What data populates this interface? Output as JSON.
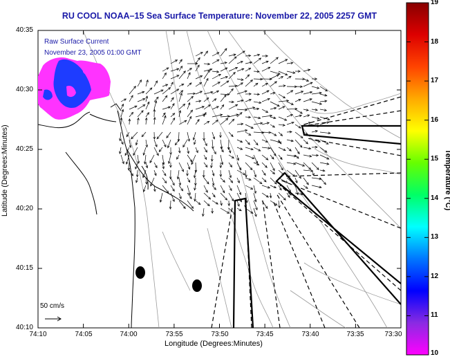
{
  "title": "RU COOL  NOAA–15  Sea Surface Temperature:  November 22, 2005 2257 GMT",
  "legend": {
    "line1": "Raw Surface Current",
    "line2": "November 23, 2005 01:00 GMT"
  },
  "scale_label": "50 cm/s",
  "x_axis": {
    "label": "Longitude (Degrees:Minutes)",
    "ticks": [
      "74:10",
      "74:05",
      "74:00",
      "73:55",
      "73:50",
      "73:45",
      "73:40",
      "73:35",
      "73:30"
    ]
  },
  "y_axis": {
    "label": "Latitude (Degrees:Minutes)",
    "ticks": [
      "40:35",
      "40:30",
      "40:25",
      "40:20",
      "40:15",
      "40:10"
    ]
  },
  "colorbar": {
    "label": "Temperature (°C)",
    "ticks": [
      "19",
      "18",
      "17",
      "16",
      "15",
      "14",
      "13",
      "12",
      "11",
      "10"
    ],
    "colors": [
      "#ff00ff",
      "#8a2be2",
      "#0000ff",
      "#0077ff",
      "#00ffff",
      "#00ff66",
      "#66ff00",
      "#ffff00",
      "#ffaa00",
      "#ff4400",
      "#dd0000",
      "#880000"
    ]
  },
  "map_colors": {
    "sst_warm": "#ff33ff",
    "sst_cool": "#1e3cff"
  },
  "buoys": [
    {
      "lon": -73.983,
      "lat": 40.243
    },
    {
      "lon": -73.872,
      "lat": 40.225
    }
  ]
}
